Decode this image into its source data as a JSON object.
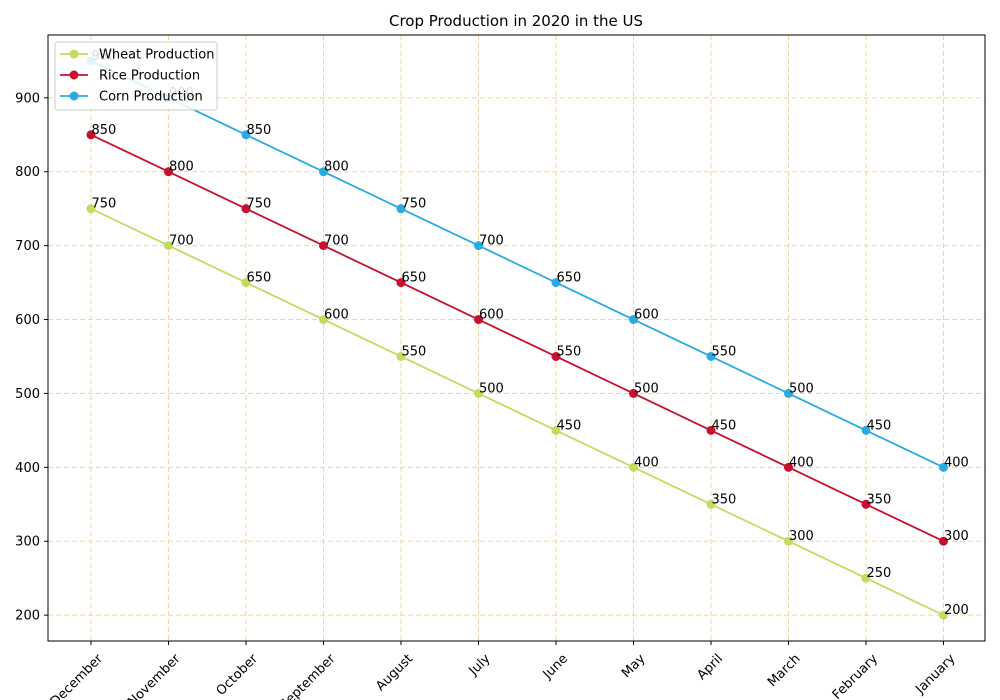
{
  "chart_data": {
    "type": "line",
    "title": "Crop Production in 2020 in the US",
    "xlabel": "",
    "ylabel": "",
    "categories": [
      "December",
      "November",
      "October",
      "September",
      "August",
      "July",
      "June",
      "May",
      "April",
      "March",
      "February",
      "January"
    ],
    "series": [
      {
        "name": "Wheat Production",
        "color": "#c2dc5e",
        "values": [
          750,
          700,
          650,
          600,
          550,
          500,
          450,
          400,
          350,
          300,
          250,
          200
        ]
      },
      {
        "name": "Rice Production",
        "color": "#c8102e",
        "values": [
          850,
          800,
          750,
          700,
          650,
          600,
          550,
          500,
          450,
          400,
          350,
          300
        ]
      },
      {
        "name": "Corn Production",
        "color": "#29abe2",
        "values": [
          950,
          900,
          850,
          800,
          750,
          700,
          650,
          600,
          550,
          500,
          450,
          400
        ]
      }
    ],
    "yticks": [
      200,
      300,
      400,
      500,
      600,
      700,
      800,
      900
    ],
    "ylim": [
      165,
      985
    ],
    "grid": true,
    "grid_color": "#f5d59a",
    "legend_position": "top-left",
    "data_labels": true
  }
}
